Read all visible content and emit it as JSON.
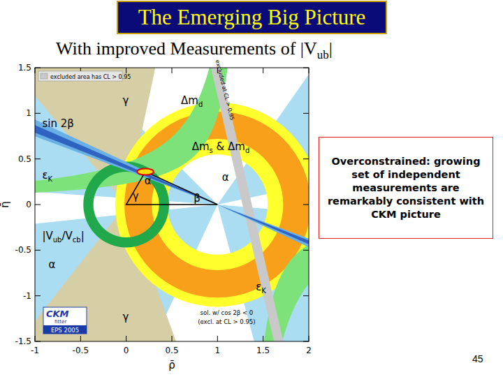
{
  "slide": {
    "title": "The Emerging Big Picture",
    "subtitle": [
      {
        "t": "With improved Measurements of |V"
      },
      {
        "t": "ub",
        "sub": true
      },
      {
        "t": "|"
      }
    ],
    "callout": "Overconstrained: growing set of independent measurements are remarkably consistent with CKM picture",
    "page_number": "45"
  },
  "chart_data": {
    "type": "ckm_constraints",
    "x_label": "ρ̄",
    "y_label": "η̄",
    "xlim": [
      -1,
      2
    ],
    "ylim": [
      -1.5,
      1.5
    ],
    "xticks": [
      -1,
      -0.5,
      0,
      0.5,
      1,
      1.5,
      2
    ],
    "yticks": [
      -1.5,
      -1,
      -0.5,
      0,
      0.5,
      1,
      1.5
    ],
    "legend_text": "excluded area has CL > 0.95",
    "logo": {
      "top": "CKM",
      "middle": "fitter",
      "bottom": "EPS 2005"
    },
    "regions": [
      {
        "type": "wedge",
        "apex": [
          1,
          0
        ],
        "angles": [
          [
            -75,
            -5
          ],
          [
            12,
            55
          ],
          [
            135,
            176
          ],
          [
            186,
            245
          ]
        ],
        "color": "#aadcf2"
      },
      {
        "type": "wedge",
        "apex": [
          0,
          0
        ],
        "angles": [
          [
            78,
            130
          ],
          [
            232,
            290
          ]
        ],
        "color": "#d6cfa6"
      },
      {
        "type": "annulus",
        "center": [
          1,
          0
        ],
        "r": [
          0.55,
          1.12
        ],
        "color": "#ffff2e"
      },
      {
        "type": "annulus",
        "center": [
          1,
          0
        ],
        "r": [
          0.72,
          1.02
        ],
        "color": "#f9a01b"
      },
      {
        "type": "hyperbola",
        "rho0": 1.31,
        "k": [
          0.3,
          0.6
        ],
        "color": "#7de27a"
      },
      {
        "type": "band",
        "from": [
          0.98,
          1.5
        ],
        "to": [
          1.67,
          -1.5
        ],
        "half_width": 0.05,
        "color": "#c9c9c9"
      },
      {
        "type": "annulus",
        "center": [
          0,
          0
        ],
        "r": [
          0.36,
          0.47
        ],
        "color": "#21a84a"
      },
      {
        "type": "wedge",
        "apex": [
          1,
          0
        ],
        "angles": [
          [
            155,
            159.5
          ],
          [
            335,
            339.5
          ]
        ],
        "color": "#6ab0e6"
      },
      {
        "type": "wedge",
        "apex": [
          1,
          0
        ],
        "angles": [
          [
            156.5,
            158.5
          ],
          [
            336.5,
            338.5
          ]
        ],
        "color": "#2f63c0"
      }
    ],
    "triangle": [
      [
        0,
        0
      ],
      [
        1,
        0
      ],
      [
        0.21,
        0.36
      ]
    ],
    "fit_region": {
      "center": [
        0.21,
        0.36
      ],
      "rx": 0.09,
      "ry": 0.035
    },
    "annotations": [
      {
        "parts": [
          {
            "t": "γ"
          }
        ],
        "x": -0.04,
        "y": 1.1
      },
      {
        "parts": [
          {
            "t": "Δm"
          },
          {
            "t": "d",
            "sub": true
          }
        ],
        "x": 0.6,
        "y": 1.1
      },
      {
        "parts": [
          {
            "t": "sin 2β"
          }
        ],
        "x": -0.92,
        "y": 0.85
      },
      {
        "parts": [
          {
            "t": "Δm"
          },
          {
            "t": "s",
            "sub": true
          },
          {
            "t": " & Δm"
          },
          {
            "t": "d",
            "sub": true
          }
        ],
        "x": 0.72,
        "y": 0.6
      },
      {
        "parts": [
          {
            "t": "ε"
          },
          {
            "t": "K",
            "sub": true
          }
        ],
        "x": -0.92,
        "y": 0.28
      },
      {
        "parts": [
          {
            "t": "α"
          }
        ],
        "x": 1.05,
        "y": 0.26
      },
      {
        "parts": [
          {
            "t": "|V"
          },
          {
            "t": "ub",
            "sub": true
          },
          {
            "t": "/V"
          },
          {
            "t": "cb",
            "sub": true
          },
          {
            "t": "|"
          }
        ],
        "x": -0.92,
        "y": -0.38
      },
      {
        "parts": [
          {
            "t": "α"
          }
        ],
        "x": -0.85,
        "y": -0.7
      },
      {
        "parts": [
          {
            "t": "ε"
          },
          {
            "t": "K",
            "sub": true
          }
        ],
        "x": 1.42,
        "y": -0.94
      },
      {
        "parts": [
          {
            "t": "γ"
          }
        ],
        "x": -0.04,
        "y": -1.27
      },
      {
        "parts": [
          {
            "t": "α"
          }
        ],
        "x": 0.2,
        "y": 0.22
      },
      {
        "parts": [
          {
            "t": "γ"
          }
        ],
        "x": 0.07,
        "y": 0.05
      },
      {
        "parts": [
          {
            "t": "β"
          }
        ],
        "x": 0.74,
        "y": 0.03
      }
    ],
    "notes": [
      {
        "t": "sol. w/ cos 2β < 0",
        "x": 1.1,
        "y": -1.21
      },
      {
        "t": "(excl. at CL > 0.95)",
        "x": 1.1,
        "y": -1.31
      }
    ],
    "band_label": {
      "t": "excluded at CL > 0.95",
      "x": 1.06,
      "y": 1.25
    }
  }
}
